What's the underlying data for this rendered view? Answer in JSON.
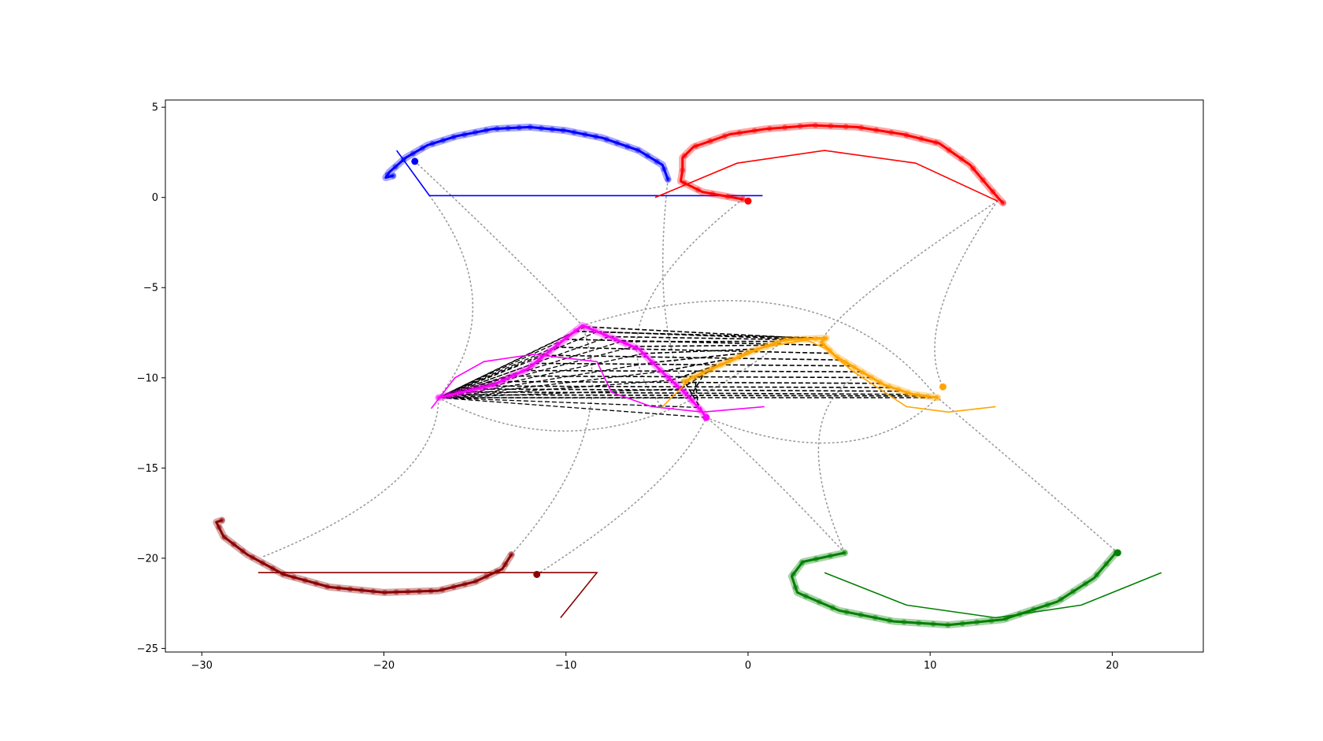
{
  "chart_data": {
    "type": "line",
    "title": "",
    "xlabel": "",
    "ylabel": "",
    "xlim": [
      -32,
      25
    ],
    "ylim": [
      -25.2,
      5.4
    ],
    "grid": false,
    "legend": "none",
    "xticks": [
      {
        "value": -30,
        "label": "−30"
      },
      {
        "value": -20,
        "label": "−20"
      },
      {
        "value": -10,
        "label": "−10"
      },
      {
        "value": 0,
        "label": "0"
      },
      {
        "value": 10,
        "label": "10"
      },
      {
        "value": 20,
        "label": "20"
      }
    ],
    "yticks": [
      {
        "value": 5,
        "label": "5"
      },
      {
        "value": 0,
        "label": "0"
      },
      {
        "value": -5,
        "label": "−5"
      },
      {
        "value": -10,
        "label": "−10"
      },
      {
        "value": -15,
        "label": "−15"
      },
      {
        "value": -20,
        "label": "−20"
      },
      {
        "value": -25,
        "label": "−25"
      }
    ],
    "series": [
      {
        "color": "#0000ff",
        "trajectory": [
          [
            -4.4,
            1.0
          ],
          [
            -4.7,
            1.8
          ],
          [
            -6,
            2.6
          ],
          [
            -8,
            3.3
          ],
          [
            -10,
            3.7
          ],
          [
            -12,
            3.9
          ],
          [
            -14,
            3.8
          ],
          [
            -16,
            3.4
          ],
          [
            -17.6,
            2.9
          ],
          [
            -18.8,
            2.2
          ],
          [
            -19.7,
            1.4
          ],
          [
            -19.9,
            1.1
          ],
          [
            -19.5,
            1.2
          ]
        ],
        "polyline": [
          [
            -19.3,
            2.6
          ],
          [
            -17.5,
            0.1
          ],
          [
            0.8,
            0.1
          ]
        ],
        "marker": [
          -18.3,
          2.0
        ]
      },
      {
        "color": "#ff0000",
        "trajectory": [
          [
            -0.3,
            -0.1
          ],
          [
            -2.5,
            0.3
          ],
          [
            -3.7,
            0.9
          ],
          [
            -3.6,
            1.5
          ],
          [
            -3.6,
            2.2
          ],
          [
            -3.0,
            2.8
          ],
          [
            -1,
            3.5
          ],
          [
            1,
            3.8
          ],
          [
            3.5,
            4.0
          ],
          [
            6,
            3.9
          ],
          [
            8.5,
            3.5
          ],
          [
            10.5,
            3.0
          ],
          [
            12.2,
            1.8
          ],
          [
            13.2,
            0.6
          ],
          [
            13.8,
            -0.1
          ],
          [
            14.0,
            -0.3
          ]
        ],
        "polyline": [
          [
            -5.1,
            0.0
          ],
          [
            -0.6,
            1.9
          ],
          [
            4.2,
            2.6
          ],
          [
            9.2,
            1.9
          ],
          [
            13.7,
            -0.2
          ]
        ],
        "marker": [
          0.0,
          -0.2
        ]
      },
      {
        "color": "#8b0000",
        "trajectory": [
          [
            -13.0,
            -19.8
          ],
          [
            -13.5,
            -20.6
          ],
          [
            -15,
            -21.3
          ],
          [
            -17,
            -21.8
          ],
          [
            -20,
            -21.9
          ],
          [
            -23,
            -21.6
          ],
          [
            -25.5,
            -20.9
          ],
          [
            -27.5,
            -19.8
          ],
          [
            -28.8,
            -18.8
          ],
          [
            -29.2,
            -18.0
          ],
          [
            -28.9,
            -17.9
          ]
        ],
        "polyline": [
          [
            -26.9,
            -20.8
          ],
          [
            -8.3,
            -20.8
          ],
          [
            -10.3,
            -23.3
          ]
        ],
        "marker": [
          -11.6,
          -20.9
        ]
      },
      {
        "color": "#008000",
        "trajectory": [
          [
            5.3,
            -19.7
          ],
          [
            3,
            -20.2
          ],
          [
            2.4,
            -21.0
          ],
          [
            2.7,
            -21.9
          ],
          [
            5,
            -22.9
          ],
          [
            8,
            -23.5
          ],
          [
            11,
            -23.7
          ],
          [
            14,
            -23.4
          ],
          [
            17,
            -22.4
          ],
          [
            19,
            -21.1
          ],
          [
            20.2,
            -19.7
          ]
        ],
        "polyline": [
          [
            4.2,
            -20.8
          ],
          [
            8.7,
            -22.6
          ],
          [
            13.6,
            -23.3
          ],
          [
            18.3,
            -22.6
          ],
          [
            22.7,
            -20.8
          ]
        ],
        "marker": [
          20.3,
          -19.7
        ]
      },
      {
        "color": "#ff00ff",
        "trajectory": [
          [
            -17.0,
            -11.1
          ],
          [
            -14,
            -10.4
          ],
          [
            -12.1,
            -9.5
          ],
          [
            -10.5,
            -8.2
          ],
          [
            -9.1,
            -7.1
          ],
          [
            -6,
            -8.4
          ],
          [
            -4.8,
            -9.6
          ],
          [
            -3.5,
            -10.8
          ],
          [
            -2.5,
            -11.9
          ],
          [
            -2.3,
            -12.2
          ]
        ],
        "polyline": [
          [
            -17.4,
            -11.7
          ],
          [
            -16.1,
            -10.0
          ],
          [
            -14.5,
            -9.1
          ],
          [
            -11.8,
            -8.7
          ],
          [
            -8.3,
            -9.1
          ],
          [
            -7.5,
            -10.8
          ],
          [
            -5.3,
            -11.6
          ],
          [
            -2.5,
            -11.9
          ],
          [
            0.9,
            -11.6
          ]
        ],
        "marker": [
          -2.3,
          -12.2
        ]
      },
      {
        "color": "#ffa500",
        "trajectory": [
          [
            10.4,
            -11.1
          ],
          [
            9,
            -10.9
          ],
          [
            7.5,
            -10.4
          ],
          [
            6.3,
            -9.7
          ],
          [
            4.8,
            -8.8
          ],
          [
            4.0,
            -8.0
          ],
          [
            4.3,
            -7.8
          ],
          [
            2,
            -7.9
          ],
          [
            0,
            -8.6
          ],
          [
            -2,
            -9.5
          ],
          [
            -3.5,
            -10.2
          ]
        ],
        "polyline": [
          [
            -4.7,
            -11.6
          ],
          [
            -3.1,
            -10.0
          ],
          [
            0.9,
            -8.3
          ],
          [
            3.2,
            -7.9
          ],
          [
            4.3,
            -8.4
          ],
          [
            5.7,
            -9.6
          ],
          [
            8.7,
            -11.6
          ],
          [
            11.0,
            -11.9
          ],
          [
            13.6,
            -11.6
          ]
        ],
        "marker": [
          10.7,
          -10.5
        ]
      }
    ]
  }
}
